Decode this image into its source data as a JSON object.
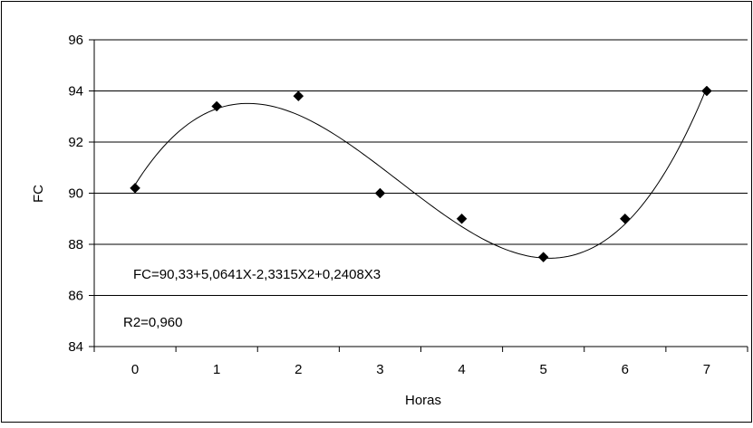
{
  "chart_data": {
    "type": "scatter",
    "title": "",
    "xlabel": "Horas",
    "ylabel": "FC",
    "xlim": [
      -0.5,
      7.5
    ],
    "ylim": [
      84,
      96
    ],
    "x_ticks": [
      0,
      1,
      2,
      3,
      4,
      5,
      6,
      7
    ],
    "x_tick_labels": [
      "0",
      "1",
      "2",
      "3",
      "4",
      "5",
      "6",
      "7"
    ],
    "y_ticks": [
      84,
      86,
      88,
      90,
      92,
      94,
      96
    ],
    "y_tick_labels": [
      "84",
      "86",
      "88",
      "90",
      "92",
      "94",
      "96"
    ],
    "grid": "horizontal",
    "legend": "none",
    "series": [
      {
        "marker": "diamond",
        "color": "#000000",
        "x": [
          0,
          1,
          2,
          3,
          4,
          5,
          6,
          7
        ],
        "y": [
          90.2,
          93.4,
          93.8,
          90.0,
          89.0,
          87.5,
          89.0,
          94.0
        ]
      }
    ],
    "trendline": {
      "type": "polynomial",
      "coefficients": [
        90.33,
        5.0641,
        -2.3315,
        0.2408
      ],
      "color": "#000000"
    },
    "annotations": [
      "FC=90,33+5,0641X-2,3315X2+0,2408X3",
      "R2=0,960"
    ]
  }
}
